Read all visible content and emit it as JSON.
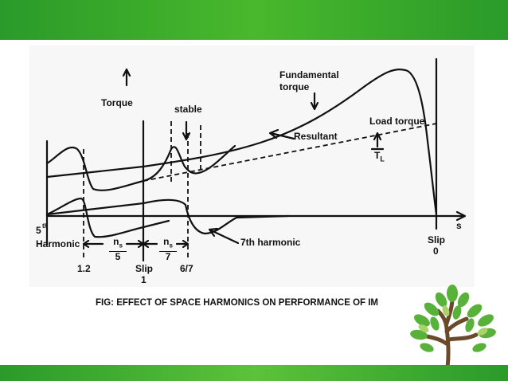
{
  "slide": {
    "colors": {
      "band_green": "#3aa62c",
      "figure_background": "#f7f7f7",
      "ink": "#111111",
      "tree_leaf": "#58b23a",
      "tree_trunk": "#6b4a2b"
    },
    "caption": "FIG: EFFECT OF SPACE HARMONICS ON PERFORMANCE OF IM",
    "decoration": "tree-illustration"
  },
  "diagram": {
    "labels": {
      "torque": "Torque",
      "stable": "stable",
      "fundamental_line1": "Fundamental",
      "fundamental_line2": "torque",
      "resultant": "Resultant",
      "load_torque": "Load torque",
      "tl_main": "T",
      "tl_sub": "L",
      "fifth_sup": "th",
      "fifth_num": "5",
      "harmonic": "Harmonic",
      "seventh": "7th harmonic",
      "s_axis": "s",
      "slip_zero_word": "Slip",
      "slip_zero_value": "0",
      "slip_one_word": "Slip",
      "slip_one_value": "1",
      "tick_12": "1.2",
      "tick_67": "6/7",
      "ns5_num": "n",
      "ns5_sub": "s",
      "ns5_den": "5",
      "ns7_num": "n",
      "ns7_sub": "s",
      "ns7_den": "7"
    }
  }
}
